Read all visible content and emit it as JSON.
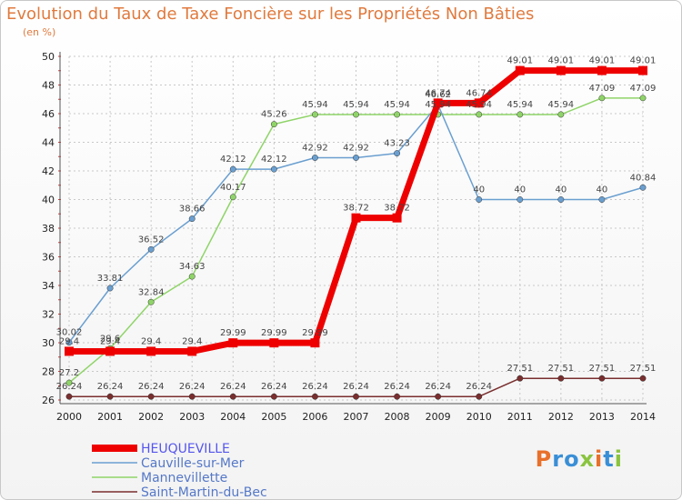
{
  "header": {
    "title": "Evolution du Taux de Taxe Foncière sur les Propriétés Non Bâties",
    "unit": "(en %)"
  },
  "logo": {
    "text": "Proxiti",
    "colors": [
      "#e8702a",
      "#3a8fd6",
      "#3a8fd6",
      "#8ac43f",
      "#e8702a",
      "#3a8fd6",
      "#8ac43f"
    ]
  },
  "chart_data": {
    "type": "line",
    "title": "Evolution du Taux de Taxe Foncière sur les Propriétés Non Bâties",
    "ylabel": "(en %)",
    "x": [
      "2000",
      "2001",
      "2002",
      "2003",
      "2004",
      "2005",
      "2006",
      "2007",
      "2008",
      "2009",
      "2010",
      "2011",
      "2012",
      "2013",
      "2014"
    ],
    "ylim": [
      26,
      50
    ],
    "yticks": [
      26,
      28,
      30,
      32,
      34,
      36,
      38,
      40,
      42,
      44,
      46,
      48,
      50
    ],
    "grid": true,
    "legend": "bottom-left",
    "series": [
      {
        "name": "HEUQUEVILLE",
        "color": "#ee0000",
        "width": 7,
        "values": [
          29.4,
          29.4,
          29.4,
          29.4,
          29.99,
          29.99,
          29.99,
          38.72,
          38.72,
          46.74,
          46.74,
          49.01,
          49.01,
          49.01,
          49.01
        ],
        "labels": [
          "29.4",
          "29.4",
          "29.4",
          "29.4",
          "29.99",
          "29.99",
          "29.99",
          "38.72",
          "38.72",
          "46.74",
          "46.74",
          "49.01",
          "49.01",
          "49.01",
          "49.01"
        ]
      },
      {
        "name": "Cauville-sur-Mer",
        "color": "#6a9fd0",
        "width": 1.5,
        "values": [
          30.02,
          33.81,
          36.52,
          38.66,
          42.12,
          42.12,
          42.92,
          42.92,
          43.23,
          46.62,
          40,
          40,
          40,
          40,
          40.84
        ],
        "labels": [
          "30.02",
          "33.81",
          "36.52",
          "38.66",
          "42.12",
          "42.12",
          "42.92",
          "42.92",
          "43.23",
          "46.62",
          "40",
          "40",
          "40",
          "40",
          "40.84"
        ]
      },
      {
        "name": "Mannevillette",
        "color": "#8fd468",
        "width": 1.5,
        "values": [
          27.2,
          29.6,
          32.84,
          34.63,
          40.17,
          45.26,
          45.94,
          45.94,
          45.94,
          45.94,
          45.94,
          45.94,
          45.94,
          47.09,
          47.09
        ],
        "labels": [
          "27.2",
          "29.6",
          "32.84",
          "34.63",
          "40.17",
          "45.26",
          "45.94",
          "45.94",
          "45.94",
          "45.94",
          "45.94",
          "45.94",
          "45.94",
          "47.09",
          "47.09"
        ]
      },
      {
        "name": "Saint-Martin-du-Bec",
        "color": "#7a2e2e",
        "width": 1.5,
        "values": [
          26.24,
          26.24,
          26.24,
          26.24,
          26.24,
          26.24,
          26.24,
          26.24,
          26.24,
          26.24,
          26.24,
          27.51,
          27.51,
          27.51,
          27.51
        ],
        "labels": [
          "26.24",
          "26.24",
          "26.24",
          "26.24",
          "26.24",
          "26.24",
          "26.24",
          "26.24",
          "26.24",
          "26.24",
          "26.24",
          "27.51",
          "27.51",
          "27.51",
          "27.51"
        ]
      }
    ]
  }
}
